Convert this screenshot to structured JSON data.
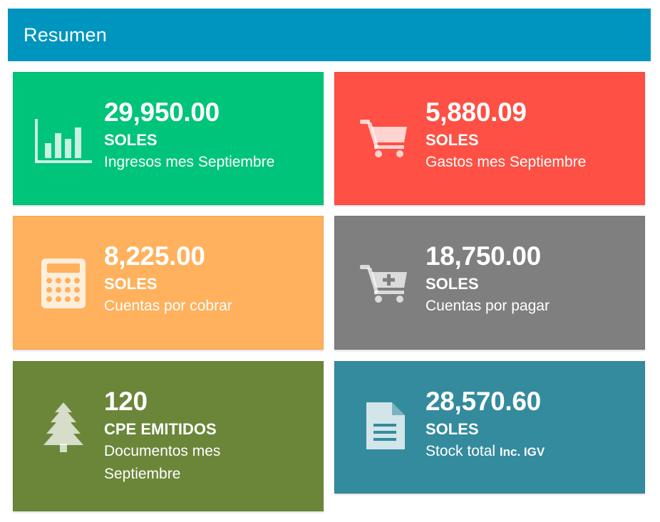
{
  "header": {
    "title": "Resumen"
  },
  "cards": [
    {
      "value": "29,950.00",
      "unit": "SOLES",
      "desc": "Ingresos mes Septiembre",
      "icon": "bar-chart-icon",
      "color": "#00c47a"
    },
    {
      "value": "5,880.09",
      "unit": "SOLES",
      "desc": "Gastos mes Septiembre",
      "icon": "shopping-cart-icon",
      "color": "#fe5044"
    },
    {
      "value": "8,225.00",
      "unit": "SOLES",
      "desc": "Cuentas por cobrar",
      "icon": "calculator-icon",
      "color": "#ffb15d"
    },
    {
      "value": "18,750.00",
      "unit": "SOLES",
      "desc": "Cuentas por pagar",
      "icon": "cart-plus-icon",
      "color": "#7f7f7f"
    },
    {
      "value": "120",
      "unit": "CPE EMITIDOS",
      "desc": "Documentos mes Septiembre",
      "icon": "tree-icon",
      "color": "#6b8639"
    },
    {
      "value": "28,570.60",
      "unit": "SOLES",
      "desc": "Stock total",
      "desc_suffix": "Inc. IGV",
      "icon": "document-icon",
      "color": "#348b9d"
    }
  ]
}
